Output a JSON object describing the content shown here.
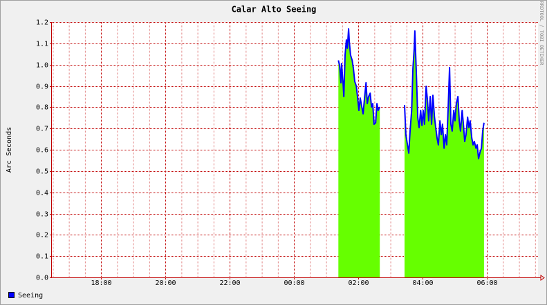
{
  "chart_data": {
    "type": "area",
    "title": "Calar Alto Seeing",
    "y_label": "Arc Seconds",
    "watermark": "RRDTOOL / TOBI OETIKER",
    "x": [
      25.38,
      25.42,
      25.46,
      25.48,
      25.53,
      25.55,
      25.59,
      25.63,
      25.66,
      25.7,
      25.72,
      25.76,
      25.81,
      25.85,
      25.89,
      25.94,
      25.98,
      26.02,
      26.06,
      26.11,
      26.15,
      26.19,
      26.24,
      26.28,
      26.32,
      26.37,
      26.41,
      26.45,
      26.49,
      26.54,
      26.58,
      26.62,
      26.67,
      27.05,
      27.44,
      27.48,
      27.53,
      27.57,
      27.61,
      27.66,
      27.7,
      27.74,
      27.76,
      27.81,
      27.85,
      27.89,
      27.94,
      27.98,
      28.02,
      28.06,
      28.11,
      28.15,
      28.19,
      28.24,
      28.28,
      28.32,
      28.37,
      28.41,
      28.45,
      28.49,
      28.54,
      28.58,
      28.62,
      28.67,
      28.71,
      28.75,
      28.8,
      28.84,
      28.88,
      28.92,
      28.97,
      29.01,
      29.05,
      29.1,
      29.14,
      29.18,
      29.23,
      29.27,
      29.31,
      29.35,
      29.4,
      29.44,
      29.48,
      29.53,
      29.57,
      29.61,
      29.66,
      29.7,
      29.74,
      29.79,
      29.83,
      29.87,
      29.91
    ],
    "series": [
      {
        "name": "Seeing",
        "color": "#0000ff",
        "fill": "#66ff00",
        "values": [
          1.02,
          0.996,
          0.915,
          1.005,
          0.908,
          0.85,
          1.045,
          1.116,
          1.077,
          1.168,
          1.109,
          1.045,
          1.02,
          0.98,
          0.921,
          0.898,
          0.843,
          0.785,
          0.843,
          0.801,
          0.769,
          0.834,
          0.915,
          0.817,
          0.85,
          0.866,
          0.801,
          0.817,
          0.72,
          0.727,
          0.817,
          0.785,
          0.801,
          null,
          0.81,
          0.671,
          0.623,
          0.584,
          0.688,
          0.785,
          0.98,
          1.077,
          1.158,
          0.947,
          0.753,
          0.704,
          0.785,
          0.714,
          0.785,
          0.72,
          0.898,
          0.834,
          0.736,
          0.85,
          0.72,
          0.856,
          0.753,
          0.704,
          0.655,
          0.623,
          0.736,
          0.671,
          0.72,
          0.607,
          0.671,
          0.623,
          0.817,
          0.986,
          0.72,
          0.688,
          0.785,
          0.736,
          0.817,
          0.85,
          0.736,
          0.688,
          0.785,
          0.72,
          0.639,
          0.671,
          0.753,
          0.704,
          0.736,
          0.655,
          0.623,
          0.639,
          0.607,
          0.623,
          0.558,
          0.59,
          0.607,
          0.688,
          0.727
        ]
      }
    ],
    "xlim": [
      16.47,
      31.59
    ],
    "xticks": [
      {
        "value": 18,
        "label": "18:00"
      },
      {
        "value": 20,
        "label": "20:00"
      },
      {
        "value": 22,
        "label": "22:00"
      },
      {
        "value": 24,
        "label": "00:00"
      },
      {
        "value": 26,
        "label": "02:00"
      },
      {
        "value": 28,
        "label": "04:00"
      },
      {
        "value": 30,
        "label": "06:00"
      }
    ],
    "xgrid": [
      16.5,
      17,
      17.5,
      18,
      18.5,
      19,
      19.5,
      20,
      20.5,
      21,
      21.5,
      22,
      22.5,
      23,
      23.5,
      24,
      24.5,
      25,
      25.5,
      26,
      26.5,
      27,
      27.5,
      28,
      28.5,
      29,
      29.5,
      30,
      30.5,
      31,
      31.5
    ],
    "ylim": [
      0,
      1.2
    ],
    "yticks": [
      {
        "value": 0,
        "label": "0.0"
      },
      0.1,
      0.2,
      0.3,
      0.4,
      0.5,
      0.6,
      0.7,
      0.8,
      0.9,
      {
        "value": 1,
        "label": "1.0"
      },
      1.1,
      1.2
    ],
    "grid": true,
    "legend": "bottom-left"
  }
}
